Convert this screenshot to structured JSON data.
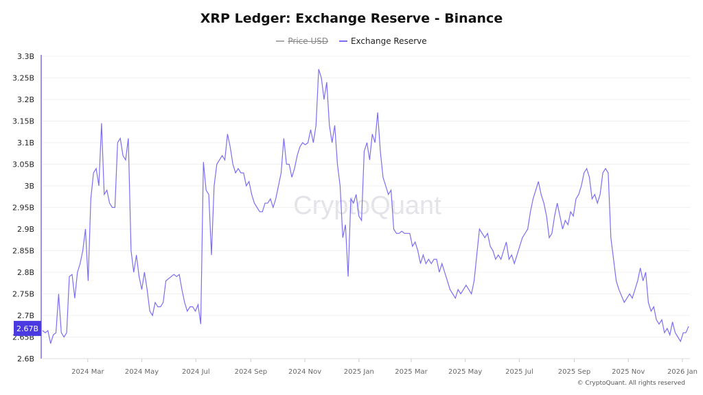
{
  "chart_data": {
    "type": "line",
    "title": "XRP Ledger: Exchange Reserve - Binance",
    "legend": [
      {
        "name": "Price USD",
        "color": "#aaaaaa",
        "hidden": true
      },
      {
        "name": "Exchange Reserve",
        "color": "#7b6cf6",
        "hidden": false
      }
    ],
    "legend_placement": "top-center",
    "xlim": [
      "2024-01-10",
      "2026-01-08"
    ],
    "x_ticks": [
      {
        "date": "2024-03-01",
        "label": "2024 Mar"
      },
      {
        "date": "2024-05-01",
        "label": "2024 May"
      },
      {
        "date": "2024-07-01",
        "label": "2024 Jul"
      },
      {
        "date": "2024-09-01",
        "label": "2024 Sep"
      },
      {
        "date": "2024-11-01",
        "label": "2024 Nov"
      },
      {
        "date": "2025-01-01",
        "label": "2025 Jan"
      },
      {
        "date": "2025-03-01",
        "label": "2025 Mar"
      },
      {
        "date": "2025-05-01",
        "label": "2025 May"
      },
      {
        "date": "2025-07-01",
        "label": "2025 Jul"
      },
      {
        "date": "2025-09-01",
        "label": "2025 Sep"
      },
      {
        "date": "2025-11-01",
        "label": "2025 Nov"
      },
      {
        "date": "2026-01-01",
        "label": "2026 Jan"
      }
    ],
    "ylim": [
      2.6,
      3.3
    ],
    "y_unit": "B",
    "y_ticks": [
      "2.6B",
      "2.65B",
      "2.7B",
      "2.75B",
      "2.8B",
      "2.85B",
      "2.9B",
      "2.95B",
      "3B",
      "3.05B",
      "3.1B",
      "3.15B",
      "3.2B",
      "3.25B",
      "3.3B"
    ],
    "y_tick_values": [
      2.6,
      2.65,
      2.7,
      2.75,
      2.8,
      2.85,
      2.9,
      2.95,
      3.0,
      3.05,
      3.1,
      3.15,
      3.2,
      3.25,
      3.3
    ],
    "grid": "horizontal",
    "last_value_label": "2.67B",
    "last_value": 2.67,
    "highlight_color": "#4a3ae0",
    "series": [
      {
        "name": "Exchange Reserve",
        "values": [
          2.665,
          2.66,
          2.665,
          2.635,
          2.655,
          2.66,
          2.75,
          2.66,
          2.65,
          2.66,
          2.79,
          2.795,
          2.74,
          2.8,
          2.82,
          2.85,
          2.9,
          2.78,
          2.97,
          3.03,
          3.04,
          3.0,
          3.145,
          2.98,
          2.99,
          2.96,
          2.95,
          2.95,
          3.1,
          3.11,
          3.07,
          3.06,
          3.11,
          2.85,
          2.8,
          2.84,
          2.79,
          2.76,
          2.8,
          2.76,
          2.71,
          2.7,
          2.73,
          2.72,
          2.72,
          2.73,
          2.78,
          2.785,
          2.79,
          2.795,
          2.79,
          2.795,
          2.76,
          2.73,
          2.71,
          2.72,
          2.72,
          2.71,
          2.725,
          2.68,
          3.055,
          2.99,
          2.98,
          2.84,
          3.0,
          3.05,
          3.06,
          3.07,
          3.06,
          3.12,
          3.09,
          3.05,
          3.03,
          3.04,
          3.03,
          3.03,
          3.0,
          3.01,
          2.98,
          2.96,
          2.95,
          2.94,
          2.94,
          2.96,
          2.96,
          2.97,
          2.95,
          2.97,
          3.0,
          3.03,
          3.11,
          3.05,
          3.05,
          3.02,
          3.04,
          3.07,
          3.09,
          3.1,
          3.095,
          3.1,
          3.13,
          3.1,
          3.14,
          3.27,
          3.25,
          3.2,
          3.24,
          3.14,
          3.1,
          3.14,
          3.05,
          3.0,
          2.88,
          2.91,
          2.79,
          2.97,
          2.96,
          2.98,
          2.93,
          2.92,
          3.08,
          3.1,
          3.06,
          3.12,
          3.1,
          3.17,
          3.08,
          3.02,
          3.0,
          2.98,
          2.99,
          2.9,
          2.89,
          2.89,
          2.895,
          2.89,
          2.89,
          2.89,
          2.86,
          2.87,
          2.85,
          2.82,
          2.84,
          2.82,
          2.83,
          2.82,
          2.83,
          2.83,
          2.8,
          2.82,
          2.8,
          2.78,
          2.76,
          2.75,
          2.74,
          2.76,
          2.75,
          2.76,
          2.77,
          2.76,
          2.75,
          2.78,
          2.84,
          2.9,
          2.89,
          2.88,
          2.89,
          2.86,
          2.85,
          2.83,
          2.84,
          2.83,
          2.85,
          2.87,
          2.83,
          2.84,
          2.82,
          2.84,
          2.86,
          2.88,
          2.89,
          2.9,
          2.94,
          2.97,
          2.99,
          3.01,
          2.98,
          2.96,
          2.93,
          2.88,
          2.89,
          2.93,
          2.96,
          2.93,
          2.9,
          2.92,
          2.91,
          2.94,
          2.93,
          2.97,
          2.98,
          3.0,
          3.03,
          3.04,
          3.02,
          2.97,
          2.98,
          2.96,
          2.98,
          3.03,
          3.04,
          3.03,
          2.88,
          2.83,
          2.78,
          2.76,
          2.745,
          2.73,
          2.74,
          2.75,
          2.74,
          2.76,
          2.78,
          2.81,
          2.78,
          2.8,
          2.73,
          2.71,
          2.72,
          2.69,
          2.68,
          2.69,
          2.66,
          2.67,
          2.655,
          2.685,
          2.66,
          2.65,
          2.64,
          2.66,
          2.66,
          2.675
        ]
      }
    ]
  },
  "watermark": "CryptoQuant",
  "footer": "© CryptoQuant. All rights reserved"
}
